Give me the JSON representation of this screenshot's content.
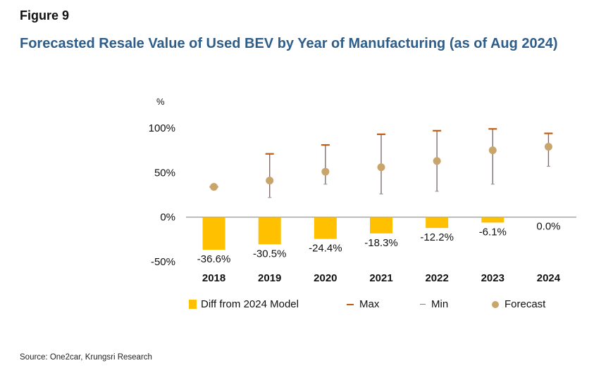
{
  "figure_label": "Figure 9",
  "title": "Forecasted Resale Value of Used BEV by Year of Manufacturing (as of Aug 2024)",
  "source": "Source: One2car, Krungsri Research",
  "colors": {
    "bar": "#ffc000",
    "max": "#c55a11",
    "whisker": "#7f6f6f",
    "forecast": "#c9a56b",
    "title": "#2e5d8a"
  },
  "chart_data": {
    "type": "bar",
    "ylabel": "%",
    "ylim": [
      -50,
      100
    ],
    "yticks": [
      -50,
      0,
      50,
      100
    ],
    "ytick_labels": [
      "-50%",
      "0%",
      "50%",
      "100%"
    ],
    "categories": [
      "2018",
      "2019",
      "2020",
      "2021",
      "2022",
      "2023",
      "2024"
    ],
    "series": [
      {
        "name": "Diff from 2024 Model",
        "kind": "bar",
        "values": [
          -36.6,
          -30.5,
          -24.4,
          -18.3,
          -12.2,
          -6.1,
          0.0
        ],
        "labels": [
          "-36.6%",
          "-30.5%",
          "-24.4%",
          "-18.3%",
          "-12.2%",
          "-6.1%",
          "0.0%"
        ]
      },
      {
        "name": "Max",
        "kind": "marker",
        "values": [
          34,
          71,
          81,
          93,
          97,
          99,
          94
        ]
      },
      {
        "name": "Min",
        "kind": "marker",
        "values": [
          34,
          22,
          37,
          26,
          29,
          37,
          57
        ]
      },
      {
        "name": "Forecast",
        "kind": "point",
        "values": [
          34,
          41,
          51,
          56,
          63,
          75,
          79
        ]
      }
    ]
  }
}
